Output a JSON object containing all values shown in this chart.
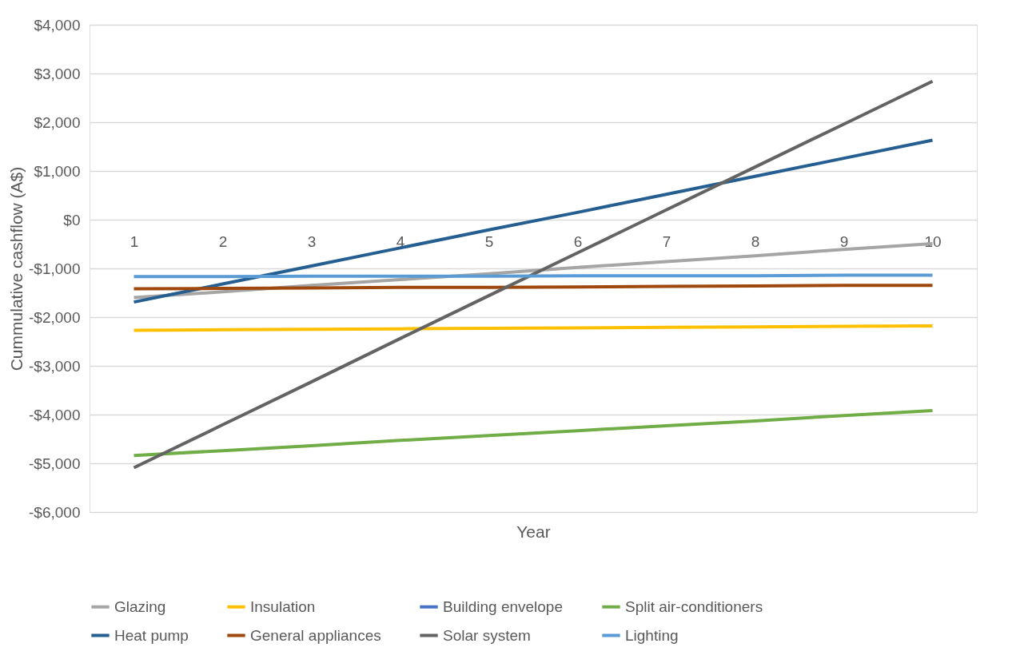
{
  "chart_data": {
    "type": "line",
    "xlabel": "Year",
    "ylabel": "Cummulative cashflow (A$)",
    "categories": [
      "1",
      "2",
      "3",
      "4",
      "5",
      "6",
      "7",
      "8",
      "9",
      "10"
    ],
    "series": [
      {
        "name": "Glazing",
        "color": "#a5a5a5",
        "values": [
          -1600,
          -1480,
          -1350,
          -1230,
          -1110,
          -980,
          -860,
          -740,
          -610,
          -490
        ]
      },
      {
        "name": "Insulation",
        "color": "#ffc000",
        "values": [
          -2270,
          -2260,
          -2250,
          -2240,
          -2230,
          -2220,
          -2210,
          -2200,
          -2190,
          -2180
        ]
      },
      {
        "name": "Building envelope",
        "color": "#4472c4",
        "values": [
          null,
          null,
          null,
          null,
          null,
          null,
          null,
          null,
          null,
          null
        ]
      },
      {
        "name": "Split air-conditioners",
        "color": "#70ad47",
        "values": [
          -4840,
          -4740,
          -4640,
          -4530,
          -4430,
          -4330,
          -4230,
          -4130,
          -4020,
          -3920
        ]
      },
      {
        "name": "Heat pump",
        "color": "#255e91",
        "values": [
          -1690,
          -1320,
          -950,
          -580,
          -210,
          150,
          520,
          890,
          1260,
          1630
        ]
      },
      {
        "name": "General appliances",
        "color": "#9e480e",
        "values": [
          -1420,
          -1410,
          -1400,
          -1390,
          -1390,
          -1380,
          -1370,
          -1360,
          -1350,
          -1350
        ]
      },
      {
        "name": "Solar system",
        "color": "#636363",
        "values": [
          -5090,
          -4210,
          -3330,
          -2440,
          -1560,
          -680,
          200,
          1080,
          1960,
          2840
        ]
      },
      {
        "name": "Lighting",
        "color": "#5b9bd5",
        "values": [
          -1170,
          -1170,
          -1160,
          -1160,
          -1160,
          -1150,
          -1150,
          -1150,
          -1140,
          -1140
        ]
      }
    ],
    "ylim": [
      -6000,
      4000
    ],
    "yticks": [
      {
        "value": -6000,
        "label": "-$6,000"
      },
      {
        "value": -5000,
        "label": "-$5,000"
      },
      {
        "value": -4000,
        "label": "-$4,000"
      },
      {
        "value": -3000,
        "label": "-$3,000"
      },
      {
        "value": -2000,
        "label": "-$2,000"
      },
      {
        "value": -1000,
        "label": "-$1,000"
      },
      {
        "value": 0,
        "label": "$0"
      },
      {
        "value": 1000,
        "label": "$1,000"
      },
      {
        "value": 2000,
        "label": "$2,000"
      },
      {
        "value": 3000,
        "label": "$3,000"
      },
      {
        "value": 4000,
        "label": "$4,000"
      }
    ],
    "grid": "y",
    "legend": "bottom",
    "marker": "none",
    "line_style": "solid"
  }
}
